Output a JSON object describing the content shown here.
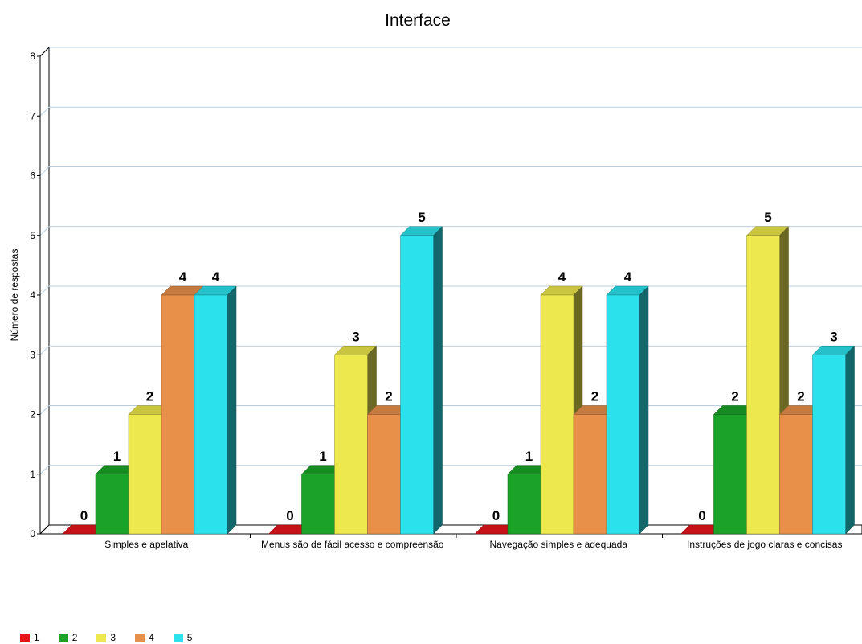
{
  "chart_data": {
    "type": "bar",
    "title": "Interface",
    "ylabel": "Número de respostas",
    "xlabel": "",
    "ylim": [
      0,
      8
    ],
    "yticks": [
      "0",
      "1",
      "2",
      "3",
      "4",
      "5",
      "6",
      "7",
      "8"
    ],
    "grid": true,
    "legend_position": "bottom-left",
    "categories": [
      "Simples e apelativa",
      "Menus são de fácil acesso e compreensão",
      "Navegação simples e adequada",
      "Instruções de jogo claras e concisas"
    ],
    "series": [
      {
        "name": "1",
        "color": "#e8141c",
        "values": [
          0,
          0,
          0,
          0
        ]
      },
      {
        "name": "2",
        "color": "#1aa328",
        "values": [
          1,
          1,
          1,
          2
        ]
      },
      {
        "name": "3",
        "color": "#ede84d",
        "values": [
          2,
          3,
          4,
          5
        ]
      },
      {
        "name": "4",
        "color": "#e8904a",
        "values": [
          4,
          2,
          2,
          2
        ]
      },
      {
        "name": "5",
        "color": "#2be2ec",
        "values": [
          4,
          5,
          4,
          3
        ]
      }
    ]
  }
}
